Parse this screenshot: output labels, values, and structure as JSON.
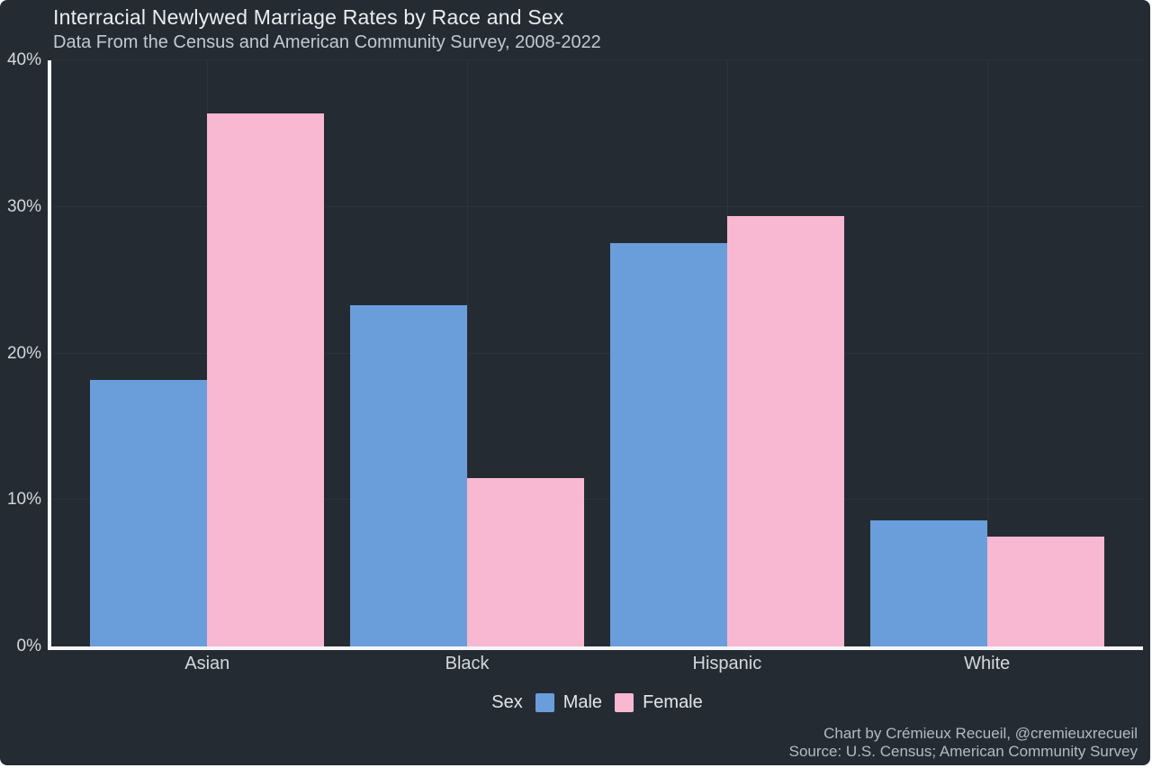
{
  "header": {
    "title": "Interracial Newlywed Marriage Rates by Race and Sex",
    "subtitle": "Data From the Census and American Community Survey, 2008-2022"
  },
  "chart_data": {
    "type": "bar",
    "title": "Interracial Newlywed Marriage Rates by Race and Sex",
    "subtitle": "Data From the Census and American Community Survey, 2008-2022",
    "categories": [
      "Asian",
      "Black",
      "Hispanic",
      "White"
    ],
    "series": [
      {
        "name": "Male",
        "color": "#6a9edb",
        "values": [
          18.2,
          23.3,
          27.5,
          8.6
        ]
      },
      {
        "name": "Female",
        "color": "#f8b8d2",
        "values": [
          36.4,
          11.5,
          29.4,
          7.5
        ]
      }
    ],
    "xlabel": "",
    "ylabel": "",
    "ylim": [
      0,
      40
    ],
    "yticks": [
      0,
      10,
      20,
      30,
      40
    ],
    "ytick_suffix": "%",
    "grid": true,
    "legend_position": "bottom",
    "legend_title": "Sex"
  },
  "legend": {
    "title": "Sex",
    "items": [
      {
        "label": "Male",
        "color": "#6a9edb"
      },
      {
        "label": "Female",
        "color": "#f8b8d2"
      }
    ]
  },
  "footer": {
    "credit_line": "Chart by Crémieux Recueil, @cremieuxrecueil",
    "source_line": "Source: U.S. Census; American Community Survey"
  },
  "colors": {
    "card_background": "#252b33",
    "page_frame": "#ffffff",
    "axis": "#f5f7f8",
    "gridline": "#2d333c",
    "male": "#6a9edb",
    "female": "#f8b8d2",
    "title_text": "#e9edf0",
    "subtitle_text": "#c3c9cf",
    "tick_text": "#d3d8dc",
    "legend_text": "#e2e6e9",
    "footer_text": "#b4bac1"
  }
}
